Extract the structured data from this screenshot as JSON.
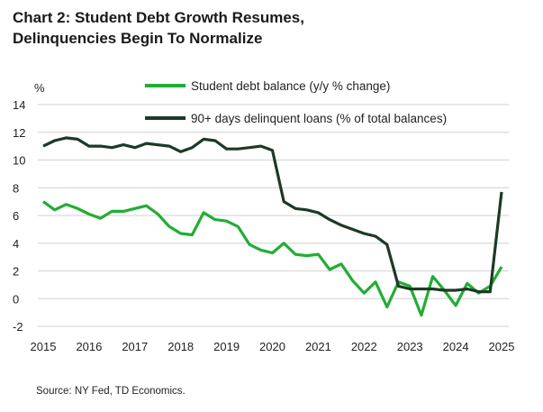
{
  "chart_data": {
    "type": "line",
    "title": "Chart 2: Student Debt Growth Resumes, Delinquencies Begin To Normalize",
    "title_lines": [
      "Chart 2: Student Debt Growth Resumes,",
      "Delinquencies Begin To Normalize"
    ],
    "ylabel": "%",
    "xlabel": "",
    "ylim": [
      -2,
      14
    ],
    "yticks": [
      -2,
      0,
      2,
      4,
      6,
      8,
      10,
      12,
      14
    ],
    "xlim": [
      2015,
      2025
    ],
    "xticks": [
      2015,
      2016,
      2017,
      2018,
      2019,
      2020,
      2021,
      2022,
      2023,
      2024,
      2025
    ],
    "grid": true,
    "legend": "top-right",
    "frequency": "quarterly, 2015Q1-2025Q1",
    "series": [
      {
        "name": "Student debt balance (y/y % change)",
        "color": "#22ad34",
        "values": [
          7.0,
          6.4,
          6.8,
          6.5,
          6.1,
          5.8,
          6.3,
          6.3,
          6.5,
          6.7,
          6.1,
          5.2,
          4.7,
          4.6,
          6.2,
          5.7,
          5.6,
          5.2,
          3.9,
          3.5,
          3.3,
          4.0,
          3.2,
          3.1,
          3.2,
          2.1,
          2.5,
          1.3,
          0.4,
          1.2,
          -0.6,
          1.2,
          0.9,
          -1.2,
          1.6,
          0.6,
          -0.5,
          1.1,
          0.4,
          0.9,
          2.3
        ]
      },
      {
        "name": "90+ days delinquent loans (% of total balances)",
        "color": "#1c3a26",
        "values": [
          11.0,
          11.4,
          11.6,
          11.5,
          11.0,
          11.0,
          10.9,
          11.1,
          10.9,
          11.2,
          11.1,
          11.0,
          10.6,
          10.9,
          11.5,
          11.4,
          10.8,
          10.8,
          10.9,
          11.0,
          10.7,
          7.0,
          6.5,
          6.4,
          6.2,
          5.7,
          5.3,
          5.0,
          4.7,
          4.5,
          3.9,
          0.9,
          0.7,
          0.7,
          0.7,
          0.6,
          0.6,
          0.7,
          0.5,
          0.5,
          7.7
        ]
      }
    ],
    "source": "Source: NY Fed, TD Economics."
  }
}
